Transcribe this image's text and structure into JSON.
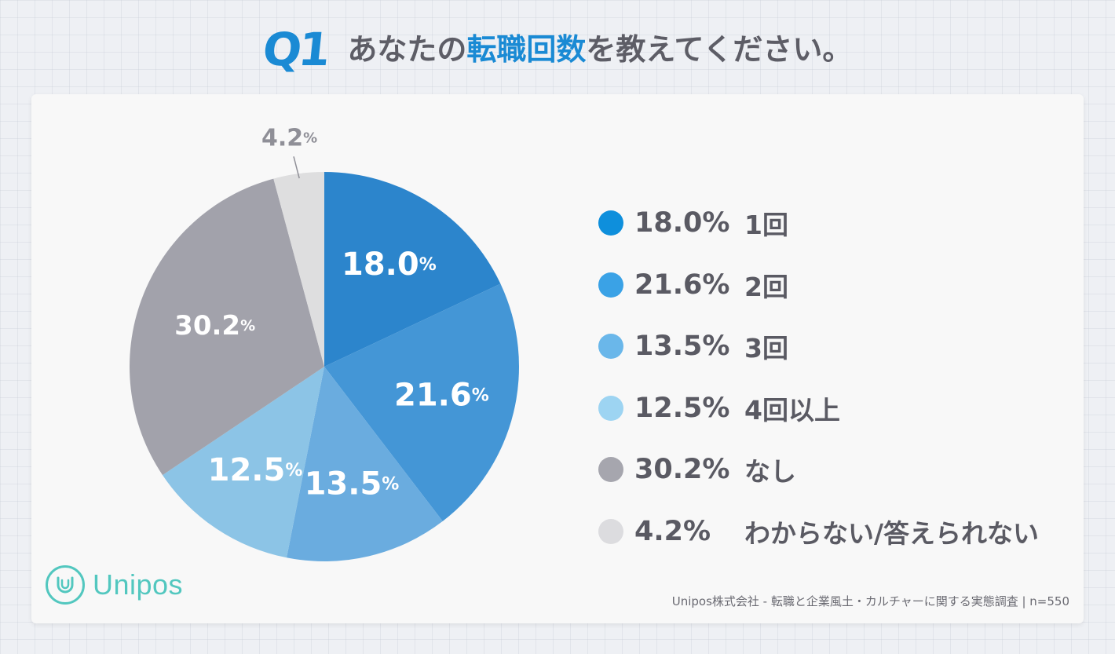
{
  "header": {
    "q_label": "Q1",
    "question_before": "あなたの",
    "question_highlight": "転職回数",
    "question_after": "を教えてください。"
  },
  "chart_data": {
    "type": "pie",
    "slices": [
      {
        "label": "1回",
        "value": 18.0,
        "display": "18.0",
        "legend_pct": "18.0%",
        "color": "#2c85cc",
        "dot_color": "#0e8fdc",
        "label_color": "#ffffff"
      },
      {
        "label": "2回",
        "value": 21.6,
        "display": "21.6",
        "legend_pct": "21.6%",
        "color": "#4496d6",
        "dot_color": "#3aa2e6",
        "label_color": "#ffffff"
      },
      {
        "label": "3回",
        "value": 13.5,
        "display": "13.5",
        "legend_pct": "13.5%",
        "color": "#6aacdf",
        "dot_color": "#6ab7ea",
        "label_color": "#ffffff"
      },
      {
        "label": "4回以上",
        "value": 12.5,
        "display": "12.5",
        "legend_pct": "12.5%",
        "color": "#8cc4e6",
        "dot_color": "#9dd4f2",
        "label_color": "#ffffff"
      },
      {
        "label": "なし",
        "value": 30.2,
        "display": "30.2",
        "legend_pct": "30.2%",
        "color": "#a2a2ab",
        "dot_color": "#a6a6ae",
        "label_color": "#ffffff"
      },
      {
        "label": "わからない/答えられない",
        "value": 4.2,
        "display": "4.2",
        "legend_pct": "4.2%",
        "color": "#dededf",
        "dot_color": "#dcdcdf",
        "label_color": "#8f8f97"
      }
    ],
    "pct_unit": "%"
  },
  "brand": {
    "logo_text": "Unipos",
    "logo_icon": "unipos-logo-icon",
    "accent": "#52c7bf"
  },
  "footnote": "Unipos株式会社 - 転職と企業風土・カルチャーに関する実態調査 | n=550"
}
